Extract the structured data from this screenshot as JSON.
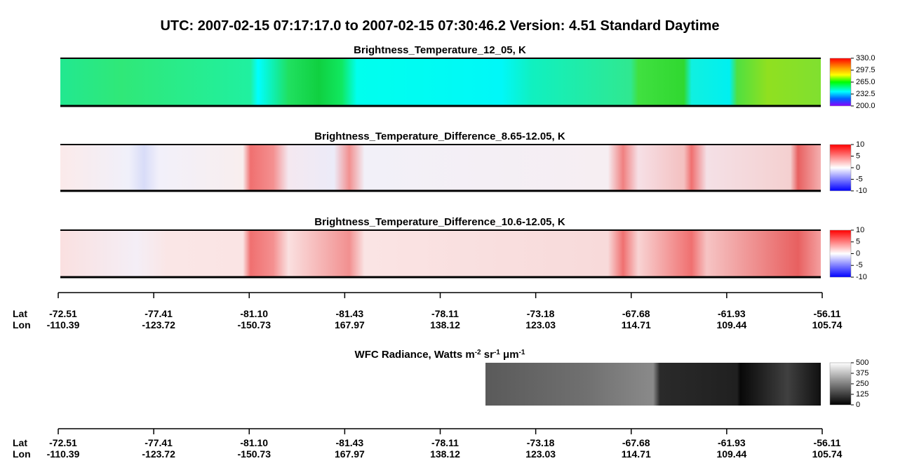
{
  "title": "UTC:  2007-02-15   07:17:17.0  to  2007-02-15   07:30:46.2    Version: 4.51  Standard Daytime",
  "panels": [
    {
      "title": "Brightness_Temperature_12_05, K",
      "lim": [
        200,
        330
      ],
      "ticks": [
        {
          "value": 330,
          "label": "330.0"
        },
        297.5,
        {
          "value": 265,
          "label": "265.0"
        },
        232.5,
        {
          "value": 200,
          "label": "200.0"
        }
      ]
    },
    {
      "title": "Brightness_Temperature_Difference_8.65-12.05, K",
      "lim": [
        -10,
        10
      ],
      "ticks": [
        10,
        5,
        0,
        -5,
        -10
      ]
    },
    {
      "title": "Brightness_Temperature_Difference_10.6-12.05, K",
      "lim": [
        -10,
        10
      ],
      "ticks": [
        10,
        5,
        0,
        -5,
        -10
      ]
    }
  ],
  "wfc": {
    "title_parts": [
      {
        "text": "WFC Radiance, Watts m"
      },
      {
        "text": "-2",
        "sup": true
      },
      {
        "text": " sr"
      },
      {
        "text": "-1",
        "sup": true
      },
      {
        "text": " μm"
      },
      {
        "text": "-1",
        "sup": true
      }
    ],
    "lim": [
      0,
      500
    ],
    "ticks": [
      500,
      375,
      250,
      125,
      0
    ]
  },
  "axis": {
    "lat_label": "Lat",
    "lon_label": "Lon",
    "lat": [
      -72.51,
      -77.41,
      {
        "value": -81.1,
        "label": "-81.10"
      },
      -81.43,
      -78.11,
      -73.18,
      -67.68,
      -61.93,
      -56.11
    ],
    "lon": [
      -110.39,
      -123.72,
      -150.73,
      167.97,
      138.12,
      123.03,
      114.71,
      109.44,
      105.74
    ]
  }
}
